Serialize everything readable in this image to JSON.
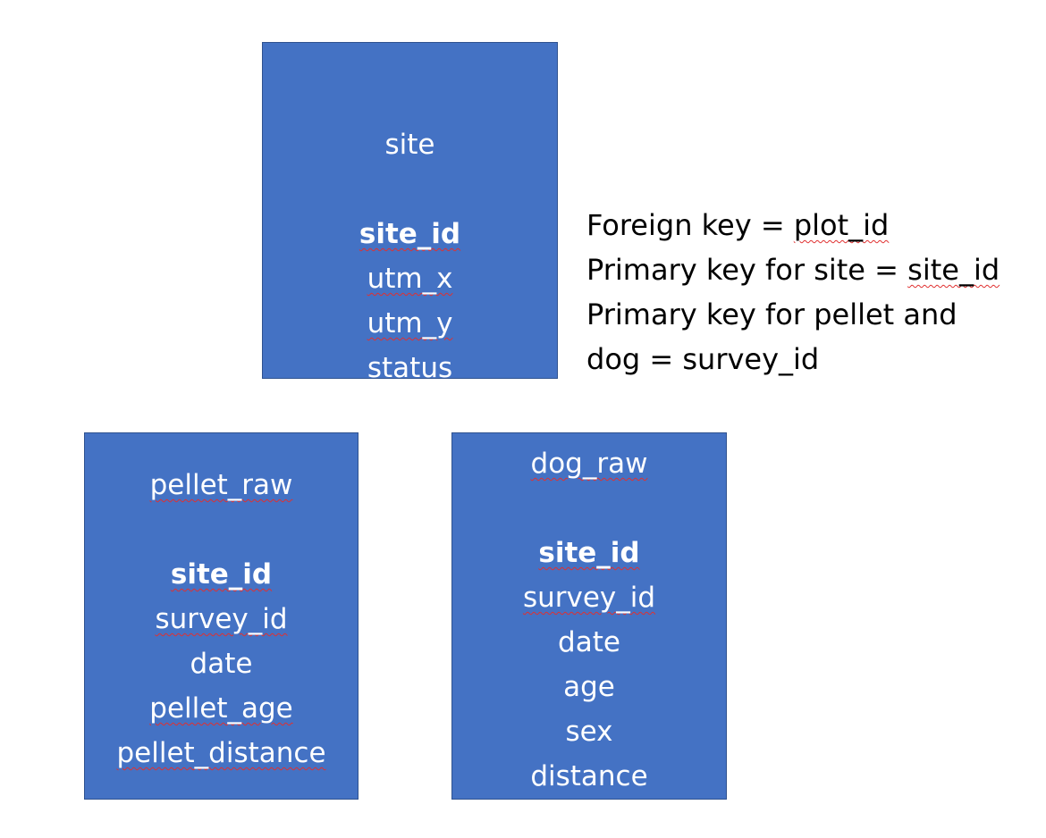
{
  "site": {
    "title": "site",
    "fields": [
      "site_id",
      "utm_x",
      "utm_y",
      "status"
    ]
  },
  "pellet": {
    "title": "pellet_raw",
    "fields": [
      "site_id",
      "survey_id",
      "date",
      "pellet_age",
      "pellet_distance"
    ]
  },
  "dog": {
    "title": "dog_raw",
    "fields": [
      "site_id",
      "survey_id",
      "date",
      "age",
      "sex",
      "distance"
    ]
  },
  "notes": {
    "line1_text": "Foreign key = ",
    "line1_value": "plot_id",
    "line2_text": "Primary key for site = ",
    "line2_value": "site_id",
    "line3": "Primary key for pellet and",
    "line4": "dog = survey_id"
  },
  "colors": {
    "box_fill": "#4472c4",
    "box_border": "#2f528f",
    "box_text": "#ffffff",
    "spellcheck_underline": "#e03030"
  }
}
